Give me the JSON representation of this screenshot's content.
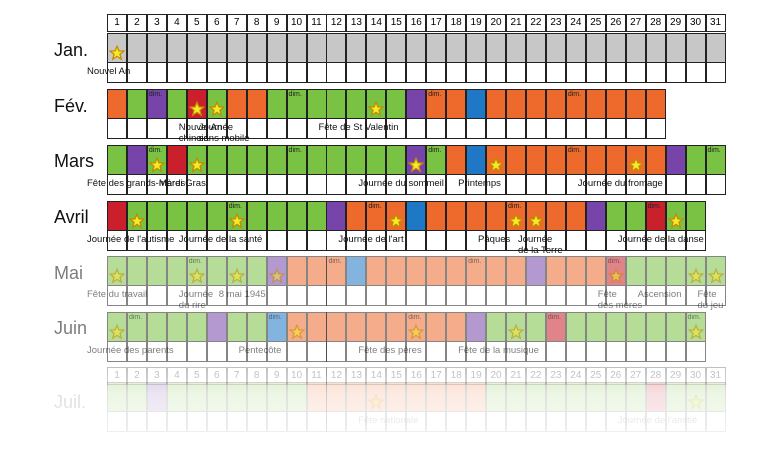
{
  "colors": {
    "gris": "#c7c7c7",
    "orange": "#ee6a2c",
    "vert": "#79c243",
    "violet": "#7744aa",
    "rouge": "#c9202c",
    "bleu": "#1f78c6",
    "etoile": "#f5ea2a"
  },
  "days": [
    "1",
    "2",
    "3",
    "4",
    "5",
    "6",
    "7",
    "8",
    "9",
    "10",
    "11",
    "12",
    "13",
    "14",
    "15",
    "16",
    "17",
    "18",
    "19",
    "20",
    "21",
    "22",
    "23",
    "24",
    "25",
    "26",
    "27",
    "28",
    "29",
    "30",
    "31"
  ],
  "dim_label": "dim.",
  "months": [
    {
      "name": "Jan.",
      "length": 31,
      "base": "G",
      "segments": [],
      "stars": [
        1
      ],
      "dims": [],
      "labels": [
        {
          "text": "Nouvel An",
          "day": 1
        }
      ],
      "opacity": "full"
    },
    {
      "name": "Fév.",
      "length": 28,
      "base": "O",
      "segments": [
        [
          2,
          4,
          "V"
        ],
        [
          3,
          3,
          "P"
        ],
        [
          5,
          5,
          "R"
        ],
        [
          6,
          6,
          "V"
        ],
        [
          9,
          9,
          "V"
        ],
        [
          10,
          16,
          "V"
        ],
        [
          16,
          16,
          "P"
        ],
        [
          19,
          19,
          "B"
        ]
      ],
      "stars": [
        5,
        6,
        14
      ],
      "dims": [
        3,
        10,
        17,
        24
      ],
      "labels": [
        {
          "text": "Nouvel An",
          "day": 5,
          "line": 0
        },
        {
          "text": "chinois",
          "day": 5,
          "line": 1
        },
        {
          "text": "Journée",
          "day": 6,
          "line": 0
        },
        {
          "text": "sans mobile",
          "day": 6,
          "line": 1
        },
        {
          "text": "Fête de St Valentin",
          "day": 12,
          "line": 0
        }
      ],
      "opacity": "full"
    },
    {
      "name": "Mars",
      "length": 31,
      "base": "O",
      "segments": [
        [
          1,
          31,
          "V"
        ],
        [
          2,
          2,
          "P"
        ],
        [
          4,
          4,
          "R"
        ],
        [
          16,
          16,
          "P"
        ],
        [
          18,
          18,
          "O"
        ],
        [
          19,
          19,
          "B"
        ],
        [
          20,
          28,
          "O"
        ],
        [
          29,
          29,
          "P"
        ]
      ],
      "stars": [
        3,
        5,
        16,
        20,
        27
      ],
      "dims": [
        3,
        10,
        17,
        24,
        31
      ],
      "labels": [
        {
          "text": "Fête des grands-mères",
          "day": 1,
          "line": 0
        },
        {
          "text": "Mardi Gras",
          "day": 4,
          "line": 0
        },
        {
          "text": "Journée du sommeil",
          "day": 14,
          "line": 0
        },
        {
          "text": "Printemps",
          "day": 19,
          "line": 0
        },
        {
          "text": "Journée du fromage",
          "day": 25,
          "line": 0
        }
      ],
      "opacity": "full"
    },
    {
      "name": "Avril",
      "length": 30,
      "base": "V",
      "segments": [
        [
          1,
          1,
          "R"
        ],
        [
          12,
          12,
          "P"
        ],
        [
          13,
          25,
          "O"
        ],
        [
          16,
          16,
          "B"
        ],
        [
          25,
          25,
          "P"
        ],
        [
          28,
          28,
          "R"
        ]
      ],
      "stars": [
        2,
        7,
        15,
        21,
        22,
        29
      ],
      "dims": [
        7,
        14,
        21,
        28
      ],
      "labels": [
        {
          "text": "Journée de l'autisme",
          "day": 1,
          "line": 0
        },
        {
          "text": "Journée de la santé",
          "day": 5,
          "line": 0
        },
        {
          "text": "Journée de l'art",
          "day": 13,
          "line": 0
        },
        {
          "text": "Pâques",
          "day": 20,
          "line": 0
        },
        {
          "text": "Journée",
          "day": 22,
          "line": 0
        },
        {
          "text": "de la Terre",
          "day": 22,
          "line": 1
        },
        {
          "text": "Journée de la danse",
          "day": 27,
          "line": 0
        }
      ],
      "opacity": "full"
    },
    {
      "name": "Mai",
      "length": 31,
      "base": "V",
      "segments": [
        [
          9,
          9,
          "P"
        ],
        [
          10,
          25,
          "O"
        ],
        [
          13,
          13,
          "B"
        ],
        [
          22,
          22,
          "P"
        ],
        [
          26,
          26,
          "R"
        ]
      ],
      "stars": [
        1,
        5,
        7,
        9,
        26,
        30,
        31
      ],
      "dims": [
        5,
        12,
        19,
        26
      ],
      "labels": [
        {
          "text": "Fête du travail",
          "day": 1,
          "line": 0
        },
        {
          "text": "Journée",
          "day": 5,
          "line": 0
        },
        {
          "text": "du rire",
          "day": 5,
          "line": 1
        },
        {
          "text": "8 mai 1945",
          "day": 7,
          "line": 0
        },
        {
          "text": "Fête",
          "day": 26,
          "line": 0
        },
        {
          "text": "des mères",
          "day": 26,
          "line": 1
        },
        {
          "text": "Ascension",
          "day": 28,
          "line": 0
        },
        {
          "text": "Fête",
          "day": 31,
          "line": 0
        },
        {
          "text": "du jeu",
          "day": 31,
          "line": 1
        }
      ],
      "opacity": "faded"
    },
    {
      "name": "Juin",
      "length": 30,
      "base": "V",
      "segments": [
        [
          6,
          6,
          "P"
        ],
        [
          9,
          9,
          "B"
        ],
        [
          9,
          19,
          "O"
        ],
        [
          9,
          9,
          "B"
        ],
        [
          19,
          19,
          "P"
        ],
        [
          23,
          23,
          "R"
        ]
      ],
      "stars": [
        1,
        10,
        16,
        21,
        30
      ],
      "dims": [
        2,
        9,
        16,
        23,
        30
      ],
      "labels": [
        {
          "text": "Journée des parents",
          "day": 1,
          "line": 0
        },
        {
          "text": "Pentecôte",
          "day": 8,
          "line": 0
        },
        {
          "text": "Fête des pères",
          "day": 14,
          "line": 0
        },
        {
          "text": "Fête de la musique",
          "day": 19,
          "line": 0
        }
      ],
      "opacity": "faded"
    },
    {
      "name": "Juil.",
      "length": 31,
      "base": "V",
      "segments": [
        [
          11,
          19,
          "O"
        ],
        [
          3,
          3,
          "P"
        ],
        [
          28,
          28,
          "R"
        ]
      ],
      "stars": [
        14,
        30
      ],
      "dims": [],
      "labels": [
        {
          "text": "Fête nationale",
          "day": 14,
          "line": 0
        },
        {
          "text": "Journée de l'amitié",
          "day": 27,
          "line": 0
        }
      ],
      "opacity": "ghost"
    }
  ]
}
